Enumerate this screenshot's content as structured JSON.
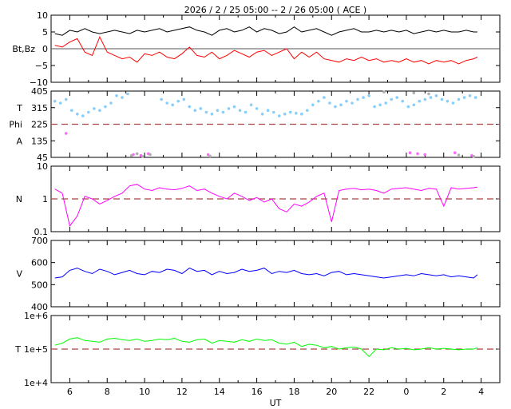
{
  "title": "2026 /  2 / 25   05:00 -- 2 / 26   05:00 ( ACE )",
  "xlabel": "UT",
  "colors": {
    "bz": "#ff0000",
    "bt": "#000000",
    "temp_phi": "#87cefa",
    "angle_a": "#ff66ff",
    "grey": "#b0b0b0",
    "density": "#ff00ff",
    "velocity": "#0000ff",
    "temperature": "#00ff00",
    "ref_line": "#aa4444"
  },
  "chart_data": [
    {
      "type": "line",
      "panel": "magnetic-field",
      "ylabel": "Bt,Bz",
      "ylim": [
        -10,
        10
      ],
      "yticks": [
        "10",
        "5",
        "0",
        "−5",
        "−10"
      ],
      "xticks": [
        "6",
        "8",
        "10",
        "12",
        "14",
        "16",
        "18",
        "20",
        "22",
        "0",
        "2",
        "4"
      ],
      "x_range_hours": [
        5,
        29
      ],
      "series": [
        {
          "key": "bt",
          "x": [
            5.2,
            5.6,
            6.0,
            6.4,
            6.8,
            7.2,
            7.6,
            8.0,
            8.4,
            8.8,
            9.2,
            9.6,
            10.0,
            10.4,
            10.8,
            11.2,
            11.6,
            12.0,
            12.4,
            12.8,
            13.2,
            13.6,
            14.0,
            14.4,
            14.8,
            15.2,
            15.6,
            16.0,
            16.4,
            16.8,
            17.2,
            17.6,
            18.0,
            18.4,
            18.8,
            19.2,
            19.6,
            20.0,
            20.4,
            20.8,
            21.2,
            21.6,
            22.0,
            22.4,
            22.8,
            23.2,
            23.6,
            24.0,
            24.4,
            24.8,
            25.2,
            25.6,
            26.0,
            26.4,
            26.8,
            27.2,
            27.6,
            27.8
          ],
          "values": [
            4.5,
            4.0,
            5.5,
            5.0,
            6.0,
            5.0,
            4.5,
            5.0,
            5.5,
            5.0,
            4.5,
            5.5,
            5.0,
            5.5,
            6.0,
            5.0,
            5.5,
            6.0,
            6.5,
            5.5,
            5.0,
            4.0,
            5.5,
            6.0,
            5.0,
            5.5,
            6.5,
            5.0,
            6.0,
            5.5,
            4.5,
            5.0,
            6.5,
            5.0,
            5.5,
            6.0,
            5.0,
            4.0,
            5.0,
            5.5,
            6.0,
            5.0,
            5.0,
            5.5,
            5.0,
            5.5,
            5.0,
            5.5,
            4.5,
            5.0,
            5.5,
            5.0,
            5.5,
            5.0,
            5.0,
            5.5,
            5.0,
            5.0
          ]
        },
        {
          "key": "bz",
          "x": [
            5.2,
            5.6,
            6.0,
            6.4,
            6.8,
            7.2,
            7.6,
            8.0,
            8.4,
            8.8,
            9.2,
            9.6,
            10.0,
            10.4,
            10.8,
            11.2,
            11.6,
            12.0,
            12.4,
            12.8,
            13.2,
            13.6,
            14.0,
            14.4,
            14.8,
            15.2,
            15.6,
            16.0,
            16.4,
            16.8,
            17.2,
            17.6,
            18.0,
            18.4,
            18.8,
            19.2,
            19.6,
            20.0,
            20.4,
            20.8,
            21.2,
            21.6,
            22.0,
            22.4,
            22.8,
            23.2,
            23.6,
            24.0,
            24.4,
            24.8,
            25.2,
            25.6,
            26.0,
            26.4,
            26.8,
            27.2,
            27.6,
            27.8
          ],
          "values": [
            1.0,
            0.5,
            2.0,
            3.0,
            -1.0,
            -2.0,
            3.5,
            -1.0,
            -2.0,
            -3.0,
            -2.5,
            -4.0,
            -1.5,
            -2.0,
            -1.0,
            -2.5,
            -3.0,
            -1.5,
            0.5,
            -2.0,
            -2.5,
            -1.0,
            -3.0,
            -2.0,
            -0.5,
            -1.5,
            -2.5,
            -1.0,
            -0.5,
            -2.0,
            -1.0,
            0.0,
            -3.0,
            -1.0,
            -2.5,
            -1.0,
            -3.0,
            -3.5,
            -4.0,
            -3.0,
            -3.5,
            -2.5,
            -3.5,
            -3.0,
            -4.0,
            -3.5,
            -4.0,
            -3.0,
            -4.0,
            -3.5,
            -4.5,
            -3.5,
            -4.0,
            -3.5,
            -4.5,
            -3.5,
            -3.0,
            -2.5
          ]
        }
      ]
    },
    {
      "type": "scatter",
      "panel": "temperature-phi",
      "ylabels": [
        "T",
        "Phi",
        "A"
      ],
      "ylim": [
        45,
        405
      ],
      "yticks": [
        "405",
        "315",
        "225",
        "135",
        "45"
      ],
      "reference_line": 225,
      "series": [
        {
          "key": "phi",
          "x": [
            5.2,
            5.5,
            5.8,
            6.1,
            6.4,
            6.7,
            7.0,
            7.3,
            7.6,
            7.9,
            8.2,
            8.5,
            8.8,
            9.1,
            10.9,
            11.2,
            11.5,
            11.8,
            12.1,
            12.4,
            12.7,
            13.0,
            13.3,
            13.6,
            13.9,
            14.2,
            14.5,
            14.8,
            15.1,
            15.4,
            15.7,
            16.0,
            16.3,
            16.6,
            16.9,
            17.2,
            17.5,
            17.8,
            18.1,
            18.4,
            18.7,
            19.0,
            19.3,
            19.6,
            19.9,
            20.2,
            20.5,
            20.8,
            21.1,
            21.4,
            21.7,
            22.0,
            22.3,
            22.6,
            22.9,
            23.2,
            23.5,
            23.8,
            24.1,
            24.4,
            24.7,
            25.0,
            25.3,
            25.6,
            25.9,
            26.2,
            26.5,
            26.8,
            27.1,
            27.4,
            27.7
          ],
          "values": [
            350,
            340,
            360,
            300,
            280,
            270,
            290,
            310,
            300,
            320,
            340,
            380,
            370,
            390,
            360,
            340,
            330,
            350,
            360,
            320,
            300,
            310,
            290,
            280,
            300,
            290,
            310,
            320,
            300,
            290,
            330,
            310,
            280,
            300,
            290,
            270,
            280,
            290,
            285,
            280,
            300,
            330,
            350,
            370,
            340,
            320,
            330,
            350,
            340,
            360,
            370,
            380,
            320,
            330,
            340,
            360,
            370,
            350,
            320,
            330,
            350,
            360,
            370,
            380,
            360,
            350,
            340,
            360,
            370,
            380,
            370
          ]
        },
        {
          "key": "a",
          "x": [
            5.8,
            9.4,
            9.8,
            10.2,
            13.4,
            24.2,
            24.6,
            25.0,
            26.6,
            27.5
          ],
          "values": [
            175,
            60,
            55,
            65,
            60,
            70,
            65,
            60,
            70,
            55
          ]
        },
        {
          "key": "grey",
          "x": [
            9.3,
            9.6,
            9.9,
            10.3,
            13.5,
            22.8,
            24.4,
            25.2,
            26.8,
            27.6
          ],
          "values": [
            55,
            65,
            50,
            60,
            52,
            400,
            395,
            390,
            58,
            50
          ]
        }
      ]
    },
    {
      "type": "line",
      "panel": "density",
      "ylabel": "N",
      "ylim": [
        0.1,
        10
      ],
      "log_scale": true,
      "yticks": [
        "10",
        "1",
        "0.1"
      ],
      "reference_line": 1,
      "x": [
        5.2,
        5.6,
        6.0,
        6.4,
        6.8,
        7.2,
        7.6,
        8.0,
        8.4,
        8.8,
        9.2,
        9.6,
        10.0,
        10.4,
        10.8,
        11.2,
        11.6,
        12.0,
        12.4,
        12.8,
        13.2,
        13.6,
        14.0,
        14.4,
        14.8,
        15.2,
        15.6,
        16.0,
        16.4,
        16.8,
        17.2,
        17.6,
        18.0,
        18.4,
        18.8,
        19.2,
        19.6,
        20.0,
        20.4,
        20.8,
        21.2,
        21.6,
        22.0,
        22.4,
        22.8,
        23.2,
        23.6,
        24.0,
        24.4,
        24.8,
        25.2,
        25.6,
        26.0,
        26.4,
        26.8,
        27.2,
        27.6,
        27.8
      ],
      "values": [
        2.0,
        1.5,
        0.15,
        0.3,
        1.2,
        1.0,
        0.7,
        0.9,
        1.2,
        1.5,
        2.5,
        2.8,
        2.0,
        1.8,
        2.2,
        2.0,
        1.9,
        2.1,
        2.5,
        1.8,
        2.0,
        1.5,
        1.2,
        1.0,
        1.5,
        1.2,
        0.9,
        1.1,
        0.8,
        1.0,
        0.5,
        0.4,
        0.7,
        0.6,
        0.8,
        1.2,
        1.5,
        0.2,
        1.8,
        2.0,
        2.1,
        1.9,
        2.0,
        1.8,
        1.5,
        2.0,
        2.1,
        2.2,
        2.0,
        1.8,
        2.1,
        2.0,
        0.6,
        2.2,
        2.0,
        2.1,
        2.2,
        2.3
      ]
    },
    {
      "type": "line",
      "panel": "velocity",
      "ylabel": "V",
      "ylim": [
        400,
        700
      ],
      "yticks": [
        "700",
        "600",
        "500",
        "400"
      ],
      "x": [
        5.2,
        5.6,
        6.0,
        6.4,
        6.8,
        7.2,
        7.6,
        8.0,
        8.4,
        8.8,
        9.2,
        9.6,
        10.0,
        10.4,
        10.8,
        11.2,
        11.6,
        12.0,
        12.4,
        12.8,
        13.2,
        13.6,
        14.0,
        14.4,
        14.8,
        15.2,
        15.6,
        16.0,
        16.4,
        16.8,
        17.2,
        17.6,
        18.0,
        18.4,
        18.8,
        19.2,
        19.6,
        20.0,
        20.4,
        20.8,
        21.2,
        21.6,
        22.0,
        22.4,
        22.8,
        23.2,
        23.6,
        24.0,
        24.4,
        24.8,
        25.2,
        25.6,
        26.0,
        26.4,
        26.8,
        27.2,
        27.6,
        27.8
      ],
      "values": [
        530,
        535,
        565,
        575,
        560,
        550,
        570,
        560,
        545,
        555,
        565,
        550,
        545,
        560,
        555,
        570,
        565,
        550,
        575,
        560,
        565,
        545,
        560,
        550,
        555,
        570,
        560,
        565,
        575,
        550,
        560,
        555,
        565,
        550,
        545,
        550,
        540,
        555,
        560,
        545,
        550,
        545,
        540,
        535,
        530,
        535,
        540,
        545,
        540,
        550,
        545,
        540,
        545,
        535,
        540,
        535,
        530,
        545
      ]
    },
    {
      "type": "line",
      "panel": "temperature",
      "ylabel": "T",
      "ylim": [
        10000,
        1000000
      ],
      "log_scale": true,
      "yticks": [
        "1e+6",
        "1e+5",
        "1e+4"
      ],
      "reference_line": 100000,
      "x": [
        5.2,
        5.6,
        6.0,
        6.4,
        6.8,
        7.2,
        7.6,
        8.0,
        8.4,
        8.8,
        9.2,
        9.6,
        10.0,
        10.4,
        10.8,
        11.2,
        11.6,
        12.0,
        12.4,
        12.8,
        13.2,
        13.6,
        14.0,
        14.4,
        14.8,
        15.2,
        15.6,
        16.0,
        16.4,
        16.8,
        17.2,
        17.6,
        18.0,
        18.4,
        18.8,
        19.2,
        19.6,
        20.0,
        20.4,
        20.8,
        21.2,
        21.6,
        22.0,
        22.4,
        22.8,
        23.2,
        23.6,
        24.0,
        24.4,
        24.8,
        25.2,
        25.6,
        26.0,
        26.4,
        26.8,
        27.2,
        27.6,
        27.8
      ],
      "values": [
        130000,
        150000,
        200000,
        220000,
        180000,
        170000,
        160000,
        200000,
        210000,
        190000,
        180000,
        200000,
        170000,
        180000,
        200000,
        190000,
        210000,
        170000,
        160000,
        190000,
        200000,
        150000,
        180000,
        170000,
        160000,
        190000,
        170000,
        200000,
        180000,
        190000,
        150000,
        140000,
        160000,
        120000,
        140000,
        130000,
        110000,
        120000,
        100000,
        110000,
        115000,
        100000,
        60000,
        100000,
        95000,
        110000,
        100000,
        105000,
        95000,
        100000,
        110000,
        100000,
        105000,
        100000,
        95000,
        100000,
        100000,
        110000
      ]
    }
  ]
}
